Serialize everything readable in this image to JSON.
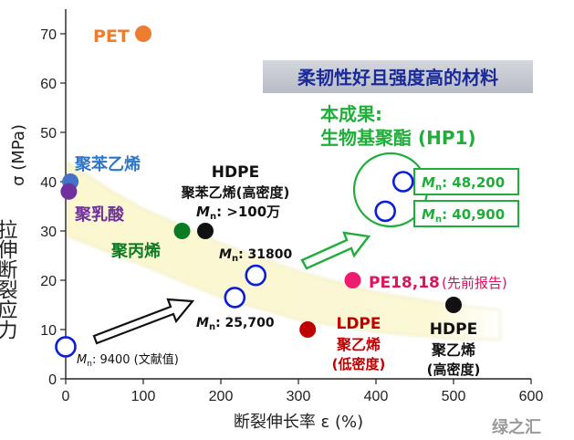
{
  "chart_data": {
    "type": "scatter",
    "title": "",
    "xlabel": "断裂伸长率 ε (%)",
    "ylabel_cjk": "拉伸断裂应力",
    "ylabel_sym": "σ (MPa)",
    "xlim": [
      0,
      600
    ],
    "ylim": [
      0,
      75
    ],
    "xticks": [
      0,
      100,
      200,
      300,
      400,
      500,
      600
    ],
    "yticks": [
      0,
      10,
      20,
      30,
      40,
      50,
      60,
      70
    ],
    "band": {
      "lower": [
        [
          2,
          29
        ],
        [
          100,
          23
        ],
        [
          200,
          16.5
        ],
        [
          300,
          12
        ],
        [
          400,
          9.5
        ],
        [
          510,
          8
        ],
        [
          560,
          8
        ]
      ],
      "upper": [
        [
          2,
          44
        ],
        [
          60,
          38
        ],
        [
          100,
          34.5
        ],
        [
          200,
          27.5
        ],
        [
          300,
          21.8
        ],
        [
          400,
          17.5
        ],
        [
          500,
          15
        ],
        [
          560,
          14
        ]
      ]
    },
    "points": [
      {
        "name": "PET",
        "x": 100,
        "y": 70,
        "color": "#ed7d31",
        "filled": true
      },
      {
        "name": "聚苯乙烯",
        "x": 6,
        "y": 40,
        "color": "#4472c4",
        "filled": true
      },
      {
        "name": "聚乳酸",
        "x": 4,
        "y": 38,
        "color": "#7030a0",
        "filled": true
      },
      {
        "name": "聚丙烯",
        "x": 150,
        "y": 30,
        "color": "#0a7a23",
        "filled": true
      },
      {
        "name": "HDPE (high Mn)",
        "x": 180,
        "y": 30,
        "color": "#111111",
        "filled": true
      },
      {
        "name": "LDPE",
        "x": 312,
        "y": 10,
        "color": "#c00000",
        "filled": true
      },
      {
        "name": "PE18,18",
        "x": 370,
        "y": 20,
        "color": "#ee1b6e",
        "filled": true
      },
      {
        "name": "HDPE",
        "x": 500,
        "y": 15,
        "color": "#111111",
        "filled": true
      },
      {
        "name": "HP1 Mn 9400",
        "x": 0,
        "y": 6.5,
        "color": "#0a1fd6",
        "filled": false
      },
      {
        "name": "HP1 Mn 25,700",
        "x": 218,
        "y": 16.5,
        "color": "#0a1fd6",
        "filled": false
      },
      {
        "name": "HP1 Mn 31800",
        "x": 245,
        "y": 21,
        "color": "#0a1fd6",
        "filled": false
      },
      {
        "name": "HP1 Mn 40,900",
        "x": 412,
        "y": 34,
        "color": "#0a1fd6",
        "filled": false
      },
      {
        "name": "HP1 Mn 48,200",
        "x": 435,
        "y": 40,
        "color": "#0a1fd6",
        "filled": false
      }
    ],
    "annotations": {
      "pet": "PET",
      "ps": "聚苯乙烯",
      "pla": "聚乳酸",
      "pp": "聚丙烯",
      "hdpe_top_1": "HDPE",
      "hdpe_top_2": "聚苯乙烯(高密度)",
      "hdpe_top_3": ": >100万",
      "mn_31800": ": 31800",
      "mn_25700": ": 25,700",
      "mn_9400": ": 9400 (文献值)",
      "mn_48200": ": 48,200",
      "mn_40900": ": 40,900",
      "pe1818": "PE18,18",
      "pe1818_note": "(先前报告)",
      "ldpe_1": "LDPE",
      "ldpe_2": "聚乙烯",
      "ldpe_3": "(低密度)",
      "hdpe_right_1": "HDPE",
      "hdpe_right_2": "聚乙烯",
      "hdpe_right_3": "(高密度)",
      "banner": "柔韧性好且强度高的材料",
      "result_1": "本成果:",
      "result_2": "生物基聚酯 (HP1)",
      "mn_symbol": "M",
      "mn_sub": "n",
      "watermark": "绿之汇"
    }
  }
}
